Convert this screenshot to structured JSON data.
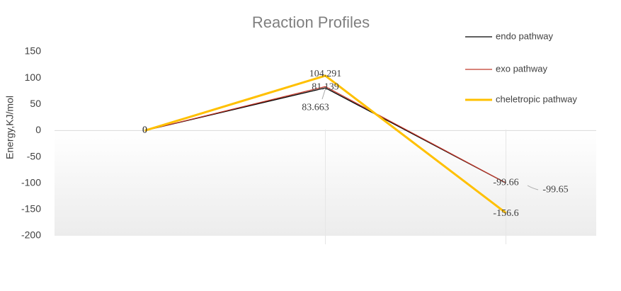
{
  "chart_data": {
    "type": "line",
    "title": "Reaction Profiles",
    "y_label": "Energy,KJ/mol",
    "categories": [
      null,
      null,
      null
    ],
    "series": [
      {
        "name": "endo pathway",
        "color": "#000000",
        "values": [
          0,
          81.139,
          -99.66
        ]
      },
      {
        "name": "exo pathway",
        "color": "#c0392b",
        "values": [
          0,
          83.663,
          -99.65
        ]
      },
      {
        "name": "cheletropic pathway",
        "color": "#ffc000",
        "values": [
          0,
          104.291,
          -156.6
        ]
      }
    ],
    "ylim": [
      -200,
      150
    ],
    "yticks": [
      -200,
      -150,
      -100,
      -50,
      0,
      50,
      100,
      150
    ],
    "grid": true,
    "legend": "top-right",
    "data_labels": true
  }
}
